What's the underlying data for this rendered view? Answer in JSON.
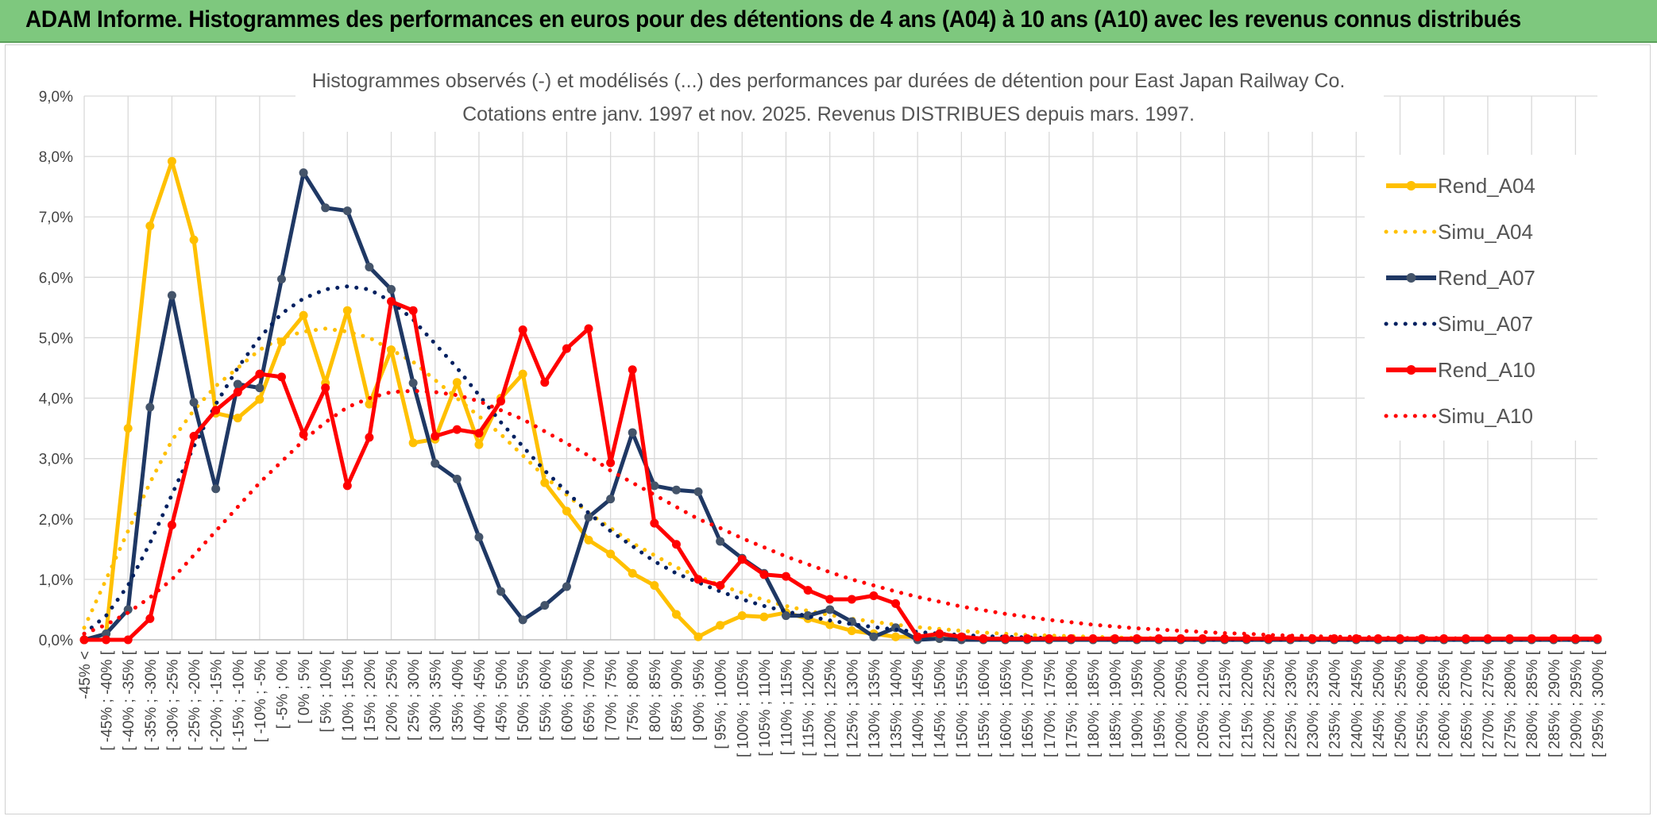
{
  "banner": {
    "title": "ADAM Informe. Histogrammes des performances en euros pour des détentions de 4 ans (A04) à 10 ans (A10) avec les revenus connus distribués",
    "color": "#7ec87e"
  },
  "chart_data": {
    "type": "line",
    "title": "Histogrammes observés (-) et modélisés (...) des performances par durées de détention pour East Japan Railway Co.",
    "subtitle": "Cotations entre janv. 1997 et nov. 2025. Revenus DISTRIBUES depuis mars. 1997.",
    "xlabel": "",
    "ylabel": "",
    "ylim": [
      0,
      9
    ],
    "yticks": [
      "0,0%",
      "1,0%",
      "2,0%",
      "3,0%",
      "4,0%",
      "5,0%",
      "6,0%",
      "7,0%",
      "8,0%",
      "9,0%"
    ],
    "grid": true,
    "legend_position": "right",
    "categories": [
      "-45% <",
      "[ -45% ; -40% [",
      "[ -40% ; -35% [",
      "[ -35% ; -30% [",
      "[ -30% ; -25% [",
      "[ -25% ; -20% [",
      "[ -20% ; -15% [",
      "[ -15% ; -10% [",
      "[ -10% ; -5% [",
      "[ -5% ; 0% [",
      "[ 0% ; 5% [",
      "[ 5% ; 10% [",
      "[ 10% ; 15% [",
      "[ 15% ; 20% [",
      "[ 20% ; 25% [",
      "[ 25% ; 30% [",
      "[ 30% ; 35% [",
      "[ 35% ; 40% [",
      "[ 40% ; 45% [",
      "[ 45% ; 50% [",
      "[ 50% ; 55% [",
      "[ 55% ; 60% [",
      "[ 60% ; 65% [",
      "[ 65% ; 70% [",
      "[ 70% ; 75% [",
      "[ 75% ; 80% [",
      "[ 80% ; 85% [",
      "[ 85% ; 90% [",
      "[ 90% ; 95% [",
      "[ 95% ; 100% [",
      "[ 100% ; 105% [",
      "[ 105% ; 110% [",
      "[ 110% ; 115% [",
      "[ 115% ; 120% [",
      "[ 120% ; 125% [",
      "[ 125% ; 130% [",
      "[ 130% ; 135% [",
      "[ 135% ; 140% [",
      "[ 140% ; 145% [",
      "[ 145% ; 150% [",
      "[ 150% ; 155% [",
      "[ 155% ; 160% [",
      "[ 160% ; 165% [",
      "[ 165% ; 170% [",
      "[ 170% ; 175% [",
      "[ 175% ; 180% [",
      "[ 180% ; 185% [",
      "[ 185% ; 190% [",
      "[ 190% ; 195% [",
      "[ 195% ; 200% [",
      "[ 200% ; 205% [",
      "[ 205% ; 210% [",
      "[ 210% ; 215% [",
      "[ 215% ; 220% [",
      "[ 220% ; 225% [",
      "[ 225% ; 230% [",
      "[ 230% ; 235% [",
      "[ 235% ; 240% [",
      "[ 240% ; 245% [",
      "[ 245% ; 250% [",
      "[ 250% ; 255% [",
      "[ 255% ; 260% [",
      "[ 260% ; 265% [",
      "[ 265% ; 270% [",
      "[ 270% ; 275% [",
      "[ 275% ; 280% [",
      "[ 280% ; 285% [",
      "[ 285% ; 290% [",
      "[ 290% ; 295% [",
      "[ 295% ; 300% ["
    ],
    "series": [
      {
        "name": "Rend_A04",
        "style": "solid",
        "color": "#ffc000",
        "values": [
          0.0,
          0.1,
          3.5,
          6.85,
          7.92,
          6.62,
          3.75,
          3.67,
          3.98,
          4.93,
          5.37,
          4.25,
          5.45,
          3.9,
          4.8,
          3.26,
          3.32,
          4.26,
          3.23,
          4.0,
          4.4,
          2.6,
          2.13,
          1.65,
          1.42,
          1.1,
          0.9,
          0.42,
          0.05,
          0.24,
          0.4,
          0.38,
          0.45,
          0.35,
          0.25,
          0.15,
          0.1,
          0.05,
          0.05,
          0.02,
          0.01,
          0,
          0,
          0,
          0,
          0,
          0,
          0,
          0,
          0,
          0,
          0,
          0,
          0,
          0,
          0,
          0,
          0,
          0,
          0,
          0,
          0,
          0,
          0,
          0,
          0,
          0,
          0,
          0,
          0
        ]
      },
      {
        "name": "Simu_A04",
        "style": "dotted",
        "color": "#ffc000",
        "values": [
          0.2,
          1.0,
          1.8,
          2.6,
          3.3,
          3.8,
          4.2,
          4.5,
          4.8,
          5.0,
          5.1,
          5.15,
          5.1,
          5.0,
          4.8,
          4.6,
          4.3,
          4.0,
          3.7,
          3.4,
          3.05,
          2.7,
          2.4,
          2.1,
          1.85,
          1.6,
          1.4,
          1.2,
          1.05,
          0.9,
          0.78,
          0.66,
          0.56,
          0.48,
          0.41,
          0.35,
          0.3,
          0.25,
          0.21,
          0.18,
          0.15,
          0.12,
          0.1,
          0.08,
          0.07,
          0.06,
          0.05,
          0.04,
          0.03,
          0.03,
          0.02,
          0.02,
          0.02,
          0.01,
          0.01,
          0.01,
          0.01,
          0.01,
          0.01,
          0,
          0,
          0,
          0,
          0,
          0,
          0,
          0,
          0,
          0,
          0
        ]
      },
      {
        "name": "Rend_A07",
        "style": "solid",
        "color": "#1f3864",
        "values": [
          0.0,
          0.1,
          0.5,
          3.85,
          5.7,
          3.93,
          2.5,
          4.23,
          4.17,
          5.97,
          7.73,
          7.15,
          7.1,
          6.17,
          5.8,
          4.25,
          2.92,
          2.66,
          1.7,
          0.8,
          0.33,
          0.57,
          0.88,
          2.03,
          2.33,
          3.43,
          2.55,
          2.48,
          2.45,
          1.63,
          1.35,
          1.1,
          0.4,
          0.4,
          0.5,
          0.3,
          0.05,
          0.2,
          0.0,
          0.02,
          0.0,
          0,
          0,
          0,
          0,
          0,
          0,
          0,
          0,
          0,
          0,
          0,
          0,
          0,
          0,
          0,
          0,
          0,
          0,
          0,
          0,
          0,
          0,
          0,
          0,
          0,
          0,
          0,
          0,
          0
        ]
      },
      {
        "name": "Simu_A07",
        "style": "dotted",
        "color": "#002060",
        "values": [
          0.1,
          0.4,
          0.9,
          1.6,
          2.4,
          3.2,
          3.9,
          4.5,
          5.0,
          5.4,
          5.65,
          5.8,
          5.85,
          5.8,
          5.6,
          5.3,
          4.9,
          4.5,
          4.05,
          3.6,
          3.2,
          2.8,
          2.45,
          2.1,
          1.8,
          1.55,
          1.3,
          1.1,
          0.95,
          0.8,
          0.67,
          0.56,
          0.47,
          0.39,
          0.32,
          0.26,
          0.21,
          0.17,
          0.13,
          0.1,
          0.08,
          0.06,
          0.05,
          0.04,
          0.03,
          0.02,
          0.02,
          0.01,
          0.01,
          0.01,
          0,
          0,
          0,
          0,
          0,
          0,
          0,
          0,
          0,
          0,
          0,
          0,
          0,
          0,
          0,
          0,
          0,
          0,
          0,
          0
        ]
      },
      {
        "name": "Rend_A10",
        "style": "solid",
        "color": "#ff0000",
        "values": [
          0.0,
          0.0,
          0.0,
          0.35,
          1.9,
          3.37,
          3.8,
          4.1,
          4.4,
          4.35,
          3.4,
          4.17,
          2.55,
          3.35,
          5.6,
          5.45,
          3.37,
          3.48,
          3.42,
          3.95,
          5.13,
          4.26,
          4.82,
          5.15,
          2.93,
          4.47,
          1.93,
          1.58,
          1.0,
          0.9,
          1.33,
          1.08,
          1.05,
          0.82,
          0.67,
          0.67,
          0.73,
          0.6,
          0.05,
          0.1,
          0.05,
          0.02,
          0.02,
          0.02,
          0.02,
          0.02,
          0.02,
          0.02,
          0.02,
          0.02,
          0.02,
          0.02,
          0.02,
          0.02,
          0.02,
          0.02,
          0.02,
          0.02,
          0.02,
          0.02,
          0.02,
          0.02,
          0.02,
          0.02,
          0.02,
          0.02,
          0.02,
          0.02,
          0.02,
          0.02
        ]
      },
      {
        "name": "Simu_A10",
        "style": "dotted",
        "color": "#ff0000",
        "values": [
          0.1,
          0.25,
          0.45,
          0.7,
          1.0,
          1.4,
          1.8,
          2.2,
          2.6,
          2.95,
          3.3,
          3.6,
          3.85,
          4.0,
          4.1,
          4.12,
          4.1,
          4.05,
          3.95,
          3.8,
          3.65,
          3.45,
          3.25,
          3.05,
          2.8,
          2.6,
          2.4,
          2.2,
          2.0,
          1.85,
          1.68,
          1.53,
          1.38,
          1.25,
          1.12,
          1.0,
          0.9,
          0.8,
          0.71,
          0.63,
          0.55,
          0.49,
          0.43,
          0.38,
          0.33,
          0.29,
          0.25,
          0.22,
          0.19,
          0.17,
          0.15,
          0.13,
          0.11,
          0.1,
          0.08,
          0.07,
          0.06,
          0.05,
          0.05,
          0.04,
          0.03,
          0.03,
          0.03,
          0.02,
          0.02,
          0.02,
          0.02,
          0.01,
          0.01,
          0.01
        ]
      }
    ]
  }
}
